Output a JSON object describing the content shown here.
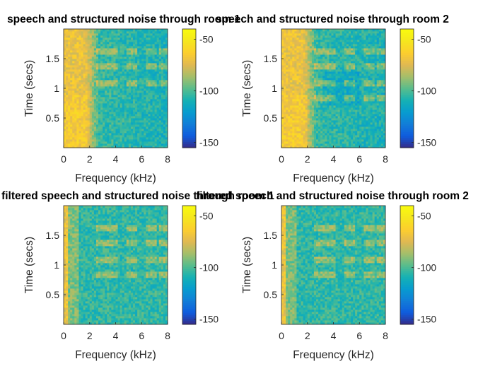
{
  "chart_data": [
    {
      "type": "heatmap",
      "title": "speech and structured noise through room 1",
      "xlabel": "Frequency (kHz)",
      "ylabel": "Time (secs)",
      "xlim": [
        0,
        8
      ],
      "ylim": [
        0,
        2
      ],
      "xticks": [
        "0",
        "2",
        "4",
        "6",
        "8"
      ],
      "yticks": [
        "0.5",
        "1",
        "1.5"
      ],
      "colorbar": {
        "ticks": [
          "-50",
          "-100",
          "-150"
        ],
        "clim": [
          -155,
          -40
        ],
        "colormap": "parula"
      },
      "harmonic_bands_secs": [
        1.1,
        1.38,
        1.62
      ]
    },
    {
      "type": "heatmap",
      "title": "speech and structured noise through room 2",
      "xlabel": "Frequency (kHz)",
      "ylabel": "Time (secs)",
      "xlim": [
        0,
        8
      ],
      "ylim": [
        0,
        2
      ],
      "xticks": [
        "0",
        "2",
        "4",
        "6",
        "8"
      ],
      "yticks": [
        "0.5",
        "1",
        "1.5"
      ],
      "colorbar": {
        "ticks": [
          "-50",
          "-100",
          "-150"
        ],
        "clim": [
          -155,
          -40
        ],
        "colormap": "parula"
      },
      "harmonic_bands_secs": [
        0.85,
        1.1,
        1.38,
        1.62
      ]
    },
    {
      "type": "heatmap",
      "title": "filtered speech and structured noise through room 1",
      "xlabel": "Frequency (kHz)",
      "ylabel": "Time (secs)",
      "xlim": [
        0,
        8
      ],
      "ylim": [
        0,
        2
      ],
      "xticks": [
        "0",
        "2",
        "4",
        "6",
        "8"
      ],
      "yticks": [
        "0.5",
        "1",
        "1.5"
      ],
      "colorbar": {
        "ticks": [
          "-50",
          "-100",
          "-150"
        ],
        "clim": [
          -155,
          -40
        ],
        "colormap": "parula"
      },
      "harmonic_bands_secs": [
        0.85,
        1.1,
        1.38,
        1.62
      ]
    },
    {
      "type": "heatmap",
      "title": "filtered speech and structured noise through room 2",
      "xlabel": "Frequency (kHz)",
      "ylabel": "Time (secs)",
      "xlim": [
        0,
        8
      ],
      "ylim": [
        0,
        2
      ],
      "xticks": [
        "0",
        "2",
        "4",
        "6",
        "8"
      ],
      "yticks": [
        "0.5",
        "1",
        "1.5"
      ],
      "colorbar": {
        "ticks": [
          "-50",
          "-100",
          "-150"
        ],
        "clim": [
          -155,
          -40
        ],
        "colormap": "parula"
      },
      "harmonic_bands_secs": [
        0.85,
        1.1,
        1.38,
        1.62
      ]
    }
  ]
}
